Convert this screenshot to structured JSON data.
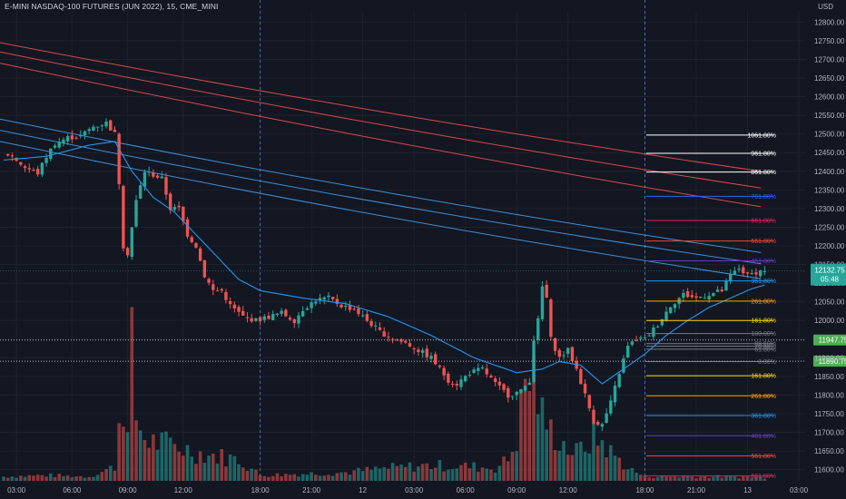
{
  "header": {
    "title": "E-MINI NASDAQ-100 FUTURES (JUN 2022), 15, CME_MINI",
    "currency": "USD"
  },
  "colors": {
    "background": "#131722",
    "grid": "#1e222d",
    "up": "#26a69a",
    "down": "#ef5350",
    "ema_blue": "#2196f3",
    "band_red": "#d84a4a",
    "band_blue": "#3d8fd6",
    "session_line": "#4f6aa8"
  },
  "chart_data": {
    "type": "candlestick",
    "symbol": "E-MINI NASDAQ-100 FUTURES (JUN 2022)",
    "interval": "15",
    "exchange": "CME_MINI",
    "currency": "USD",
    "ylim": [
      11570,
      12830
    ],
    "y_ticks": [
      11600,
      11650,
      11700,
      11750,
      11800,
      11850,
      11900,
      11950,
      12000,
      12050,
      12100,
      12150,
      12200,
      12250,
      12300,
      12350,
      12400,
      12450,
      12500,
      12550,
      12600,
      12650,
      12700,
      12750,
      12800
    ],
    "y_tick_labels": [
      "11600.00",
      "11650.00",
      "11700.00",
      "11750.00",
      "11800.00",
      "11850.00",
      "11900.00",
      "",
      "12000.00",
      "12050.00",
      "12100.00",
      "12150.00",
      "12200.00",
      "12250.00",
      "12300.00",
      "12350.00",
      "12400.00",
      "12450.00",
      "12500.00",
      "12550.00",
      "12600.00",
      "12650.00",
      "12700.00",
      "12750.00",
      "12800.00"
    ],
    "x_ticks": [
      {
        "label": "03:00",
        "bar": 3
      },
      {
        "label": "06:00",
        "bar": 16
      },
      {
        "label": "09:00",
        "bar": 29
      },
      {
        "label": "12:00",
        "bar": 42
      },
      {
        "label": "18:00",
        "bar": 60
      },
      {
        "label": "21:00",
        "bar": 72
      },
      {
        "label": "12",
        "bar": 84
      },
      {
        "label": "03:00",
        "bar": 96
      },
      {
        "label": "06:00",
        "bar": 108
      },
      {
        "label": "09:00",
        "bar": 120
      },
      {
        "label": "12:00",
        "bar": 132
      },
      {
        "label": "18:00",
        "bar": 150
      },
      {
        "label": "21:00",
        "bar": 162
      },
      {
        "label": "13",
        "bar": 174
      },
      {
        "label": "03:00",
        "bar": 186
      }
    ],
    "session_breaks": [
      60,
      150
    ],
    "price_path": [
      [
        0,
        12450
      ],
      [
        2,
        12440
      ],
      [
        5,
        12410
      ],
      [
        8,
        12395
      ],
      [
        10,
        12440
      ],
      [
        12,
        12475
      ],
      [
        15,
        12490
      ],
      [
        18,
        12495
      ],
      [
        21,
        12520
      ],
      [
        24,
        12530
      ],
      [
        26,
        12500
      ],
      [
        27,
        12370
      ],
      [
        28,
        12200
      ],
      [
        29,
        12180
      ],
      [
        31,
        12320
      ],
      [
        33,
        12400
      ],
      [
        35,
        12390
      ],
      [
        37,
        12380
      ],
      [
        39,
        12300
      ],
      [
        41,
        12300
      ],
      [
        43,
        12230
      ],
      [
        45,
        12200
      ],
      [
        47,
        12120
      ],
      [
        49,
        12080
      ],
      [
        51,
        12080
      ],
      [
        53,
        12040
      ],
      [
        56,
        12010
      ],
      [
        59,
        12000
      ],
      [
        62,
        12010
      ],
      [
        65,
        12020
      ],
      [
        68,
        12000
      ],
      [
        70,
        12030
      ],
      [
        73,
        12055
      ],
      [
        76,
        12060
      ],
      [
        79,
        12040
      ],
      [
        82,
        12030
      ],
      [
        85,
        12000
      ],
      [
        88,
        11970
      ],
      [
        91,
        11950
      ],
      [
        94,
        11940
      ],
      [
        97,
        11920
      ],
      [
        100,
        11900
      ],
      [
        102,
        11870
      ],
      [
        104,
        11840
      ],
      [
        106,
        11830
      ],
      [
        109,
        11860
      ],
      [
        112,
        11870
      ],
      [
        115,
        11830
      ],
      [
        118,
        11800
      ],
      [
        121,
        11810
      ],
      [
        123,
        11840
      ],
      [
        124,
        11950
      ],
      [
        125,
        12000
      ],
      [
        126,
        12090
      ],
      [
        127,
        12060
      ],
      [
        128,
        11950
      ],
      [
        130,
        11900
      ],
      [
        132,
        11920
      ],
      [
        134,
        11870
      ],
      [
        136,
        11800
      ],
      [
        138,
        11730
      ],
      [
        140,
        11720
      ],
      [
        142,
        11780
      ],
      [
        144,
        11860
      ],
      [
        146,
        11930
      ],
      [
        148,
        11950
      ],
      [
        150,
        11950
      ],
      [
        153,
        11990
      ],
      [
        156,
        12040
      ],
      [
        159,
        12070
      ],
      [
        162,
        12060
      ],
      [
        165,
        12070
      ],
      [
        168,
        12080
      ],
      [
        170,
        12120
      ],
      [
        172,
        12140
      ],
      [
        174,
        12120
      ],
      [
        176,
        12130
      ],
      [
        178,
        12135
      ]
    ],
    "volume_profile": [
      [
        0,
        6
      ],
      [
        10,
        8
      ],
      [
        20,
        6
      ],
      [
        26,
        20
      ],
      [
        27,
        85
      ],
      [
        28,
        120
      ],
      [
        29,
        60
      ],
      [
        30,
        180
      ],
      [
        31,
        90
      ],
      [
        33,
        60
      ],
      [
        35,
        55
      ],
      [
        40,
        50
      ],
      [
        45,
        40
      ],
      [
        50,
        35
      ],
      [
        55,
        30
      ],
      [
        60,
        8
      ],
      [
        70,
        10
      ],
      [
        80,
        12
      ],
      [
        90,
        18
      ],
      [
        100,
        22
      ],
      [
        110,
        20
      ],
      [
        115,
        18
      ],
      [
        118,
        30
      ],
      [
        120,
        60
      ],
      [
        122,
        140
      ],
      [
        124,
        150
      ],
      [
        126,
        90
      ],
      [
        128,
        70
      ],
      [
        130,
        60
      ],
      [
        132,
        45
      ],
      [
        134,
        40
      ],
      [
        136,
        50
      ],
      [
        138,
        60
      ],
      [
        140,
        55
      ],
      [
        142,
        40
      ],
      [
        144,
        30
      ],
      [
        146,
        18
      ],
      [
        150,
        6
      ],
      [
        160,
        6
      ],
      [
        170,
        6
      ],
      [
        178,
        5
      ]
    ],
    "ema": [
      [
        0,
        12430
      ],
      [
        10,
        12440
      ],
      [
        20,
        12470
      ],
      [
        26,
        12480
      ],
      [
        30,
        12400
      ],
      [
        35,
        12330
      ],
      [
        40,
        12290
      ],
      [
        45,
        12230
      ],
      [
        50,
        12170
      ],
      [
        55,
        12110
      ],
      [
        60,
        12080
      ],
      [
        70,
        12060
      ],
      [
        80,
        12045
      ],
      [
        90,
        12010
      ],
      [
        100,
        11960
      ],
      [
        110,
        11900
      ],
      [
        120,
        11860
      ],
      [
        126,
        11870
      ],
      [
        130,
        11890
      ],
      [
        135,
        11880
      ],
      [
        140,
        11830
      ],
      [
        145,
        11870
      ],
      [
        150,
        11910
      ],
      [
        155,
        11960
      ],
      [
        160,
        12000
      ],
      [
        165,
        12035
      ],
      [
        170,
        12060
      ],
      [
        175,
        12085
      ],
      [
        178,
        12095
      ]
    ],
    "bands_red": [
      {
        "y0": 12745,
        "y1": 12400
      },
      {
        "y0": 12720,
        "y1": 12355
      },
      {
        "y0": 12690,
        "y1": 12305
      }
    ],
    "bands_blue": [
      {
        "y0": 12540,
        "y1": 12182
      },
      {
        "y0": 12510,
        "y1": 12152
      },
      {
        "y0": 12480,
        "y1": 12112
      }
    ],
    "fib_levels": [
      {
        "label": "1061.80%",
        "price": 12497,
        "color": "#ffffff"
      },
      {
        "label": "961.80%",
        "price": 12448,
        "color": "#ffffff"
      },
      {
        "label": "861.80%",
        "price": 12398,
        "color": "#ffffff"
      },
      {
        "label": "761.80%",
        "price": 12333,
        "color": "#2962ff"
      },
      {
        "label": "661.80%",
        "price": 12268,
        "color": "#e91e63"
      },
      {
        "label": "561.80%",
        "price": 12213,
        "color": "#f44336"
      },
      {
        "label": "461.80%",
        "price": 12160,
        "color": "#673ab7"
      },
      {
        "label": "361.80%",
        "price": 12106,
        "color": "#2196f3"
      },
      {
        "label": "261.80%",
        "price": 12052,
        "color": "#ff9800"
      },
      {
        "label": "161.80%",
        "price": 12000,
        "color": "#ffd700"
      },
      {
        "label": "100.00%",
        "price": 11965,
        "color": "#787b86"
      },
      {
        "label": "88.60%",
        "price": 11938,
        "color": "#787b86"
      },
      {
        "label": "78.60%",
        "price": 11931,
        "color": "#787b86"
      },
      {
        "label": "61.80%",
        "price": 11923,
        "color": "#787b86"
      },
      {
        "label": "0.00%",
        "price": 11890,
        "color": "#787b86"
      },
      {
        "label": "161.80%",
        "price": 11852,
        "color": "#ffd700"
      },
      {
        "label": "261.80%",
        "price": 11798,
        "color": "#ff9800"
      },
      {
        "label": "361.80%",
        "price": 11745,
        "color": "#2196f3"
      },
      {
        "label": "461.80%",
        "price": 11691,
        "color": "#673ab7"
      },
      {
        "label": "561.80%",
        "price": 11637,
        "color": "#f44336"
      },
      {
        "label": "661.80%",
        "price": 11583,
        "color": "#e91e63"
      }
    ],
    "hlines": [
      {
        "price": 11947.75,
        "label": "11947.75",
        "color": "#4caf50"
      },
      {
        "price": 11890.75,
        "label": "11890.75",
        "color": "#4caf50"
      }
    ],
    "last_price": {
      "price": 12132.75,
      "label": "12132.75",
      "countdown": "05:48",
      "color": "#26a69a"
    }
  }
}
